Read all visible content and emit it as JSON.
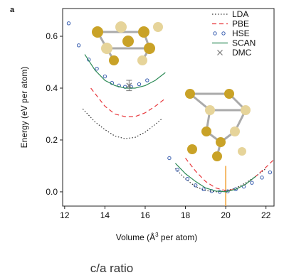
{
  "chart_data": {
    "type": "line",
    "panel_label": "a",
    "xlabel_parts": [
      "Volume (Å",
      "3",
      " per atom)"
    ],
    "ylabel": "Energy (eV per atom)",
    "caption": "c/a ratio",
    "xlim": [
      11.9,
      22.4
    ],
    "xticks": [
      12,
      14,
      16,
      18,
      20,
      22
    ],
    "ylim": [
      -0.055,
      0.707
    ],
    "yticks": [
      {
        "value": 0.0,
        "label": "0.0"
      },
      0.2,
      0.4,
      0.6
    ],
    "vline": {
      "x": 20,
      "color": "#f0a030"
    },
    "legend": "upper right",
    "series": [
      {
        "name": "LDA",
        "color": "#333333",
        "style": "dotted",
        "x": [
          12.9,
          13.5,
          14,
          14.5,
          15,
          15.5,
          16,
          16.5,
          16.8,
          null,
          17.5,
          18,
          18.5,
          19,
          19.5,
          20,
          20.5,
          21,
          21.5,
          22
        ],
        "values": [
          0.32,
          0.27,
          0.24,
          0.215,
          0.205,
          0.21,
          0.23,
          0.26,
          0.28,
          null,
          0.09,
          0.05,
          0.02,
          0.005,
          0,
          0.003,
          0.015,
          0.035,
          0.06,
          0.09
        ]
      },
      {
        "name": "PBE",
        "color": "#e8383d",
        "style": "dashed",
        "x": [
          13.3,
          14,
          14.5,
          15,
          15.5,
          16,
          16.5,
          17,
          null,
          18,
          18.5,
          19,
          19.5,
          20,
          20.5,
          21,
          21.5,
          22,
          22.4
        ],
        "values": [
          0.4,
          0.33,
          0.3,
          0.29,
          0.29,
          0.305,
          0.33,
          0.36,
          null,
          0.13,
          0.08,
          0.04,
          0.015,
          0.005,
          0.01,
          0.03,
          0.06,
          0.095,
          0.125
        ]
      },
      {
        "name": "HSE",
        "color": "#3a5fb0",
        "style": "circles",
        "x": [
          12.2,
          12.7,
          13.2,
          13.6,
          14,
          14.35,
          14.7,
          15,
          15.3,
          15.7,
          16.1,
          17.2,
          17.6,
          18.1,
          18.5,
          18.9,
          19.3,
          19.7,
          20.1,
          20.5,
          20.9,
          21.3,
          21.8,
          22.2
        ],
        "values": [
          0.65,
          0.565,
          0.51,
          0.475,
          0.445,
          0.42,
          0.41,
          0.405,
          0.405,
          0.415,
          0.43,
          0.13,
          0.085,
          0.05,
          0.025,
          0.01,
          0.003,
          0.0,
          0.002,
          0.01,
          0.02,
          0.035,
          0.055,
          0.075
        ]
      },
      {
        "name": "SCAN",
        "color": "#2e8b57",
        "style": "solid",
        "x": [
          13,
          13.5,
          14,
          14.5,
          15,
          15.5,
          16,
          16.5,
          17,
          null,
          17.5,
          18,
          18.5,
          19,
          19.5,
          20,
          20.5,
          21,
          21.5
        ],
        "values": [
          0.53,
          0.47,
          0.43,
          0.41,
          0.4,
          0.4,
          0.41,
          0.43,
          0.46,
          null,
          0.11,
          0.07,
          0.04,
          0.015,
          0.003,
          0,
          0.01,
          0.03,
          0.06
        ]
      },
      {
        "name": "DMC",
        "color": "#777777",
        "style": "cross",
        "x": [
          15.2
        ],
        "values": [
          0.41
        ],
        "errors": [
          0.02
        ]
      }
    ]
  }
}
